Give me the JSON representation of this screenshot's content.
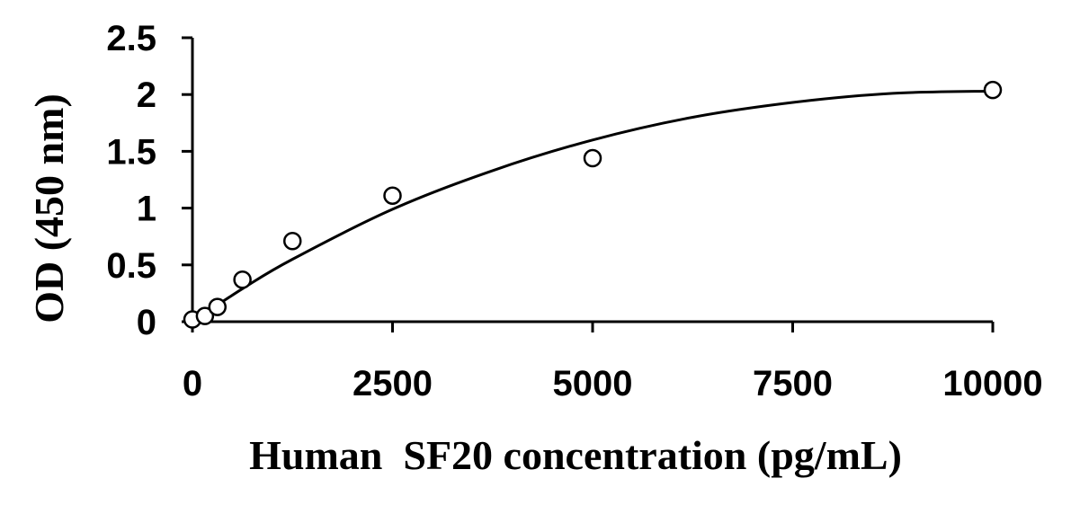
{
  "chart_data": {
    "type": "scatter",
    "title": "",
    "xlabel": "Human  SF20 concentration (pg/mL)",
    "ylabel": "OD (450 nm)",
    "xlim": [
      0,
      10000
    ],
    "ylim": [
      0,
      2.5
    ],
    "x_ticks": [
      0,
      2500,
      5000,
      7500,
      10000
    ],
    "x_tick_labels": [
      "0",
      "2500",
      "5000",
      "7500",
      "10000"
    ],
    "y_ticks": [
      0,
      0.5,
      1,
      1.5,
      2,
      2.5
    ],
    "y_tick_labels": [
      "0",
      "0.5",
      "1",
      "1.5",
      "2",
      "2.5"
    ],
    "grid": false,
    "legend": "none",
    "series": [
      {
        "marker": "open-circle",
        "x": [
          0,
          156,
          312,
          625,
          1250,
          2500,
          5000,
          10000
        ],
        "y": [
          0.02,
          0.05,
          0.13,
          0.37,
          0.71,
          1.11,
          1.44,
          2.04
        ]
      }
    ],
    "fit_curve": {
      "type": "polynomial",
      "x": [
        0,
        625,
        1250,
        2500,
        3750,
        5000,
        6250,
        7500,
        8750,
        10000
      ],
      "y": [
        0.0,
        0.29,
        0.55,
        0.99,
        1.33,
        1.6,
        1.8,
        1.93,
        2.01,
        2.03
      ]
    },
    "colors": {
      "marks": "#000000",
      "background": "#ffffff"
    }
  }
}
